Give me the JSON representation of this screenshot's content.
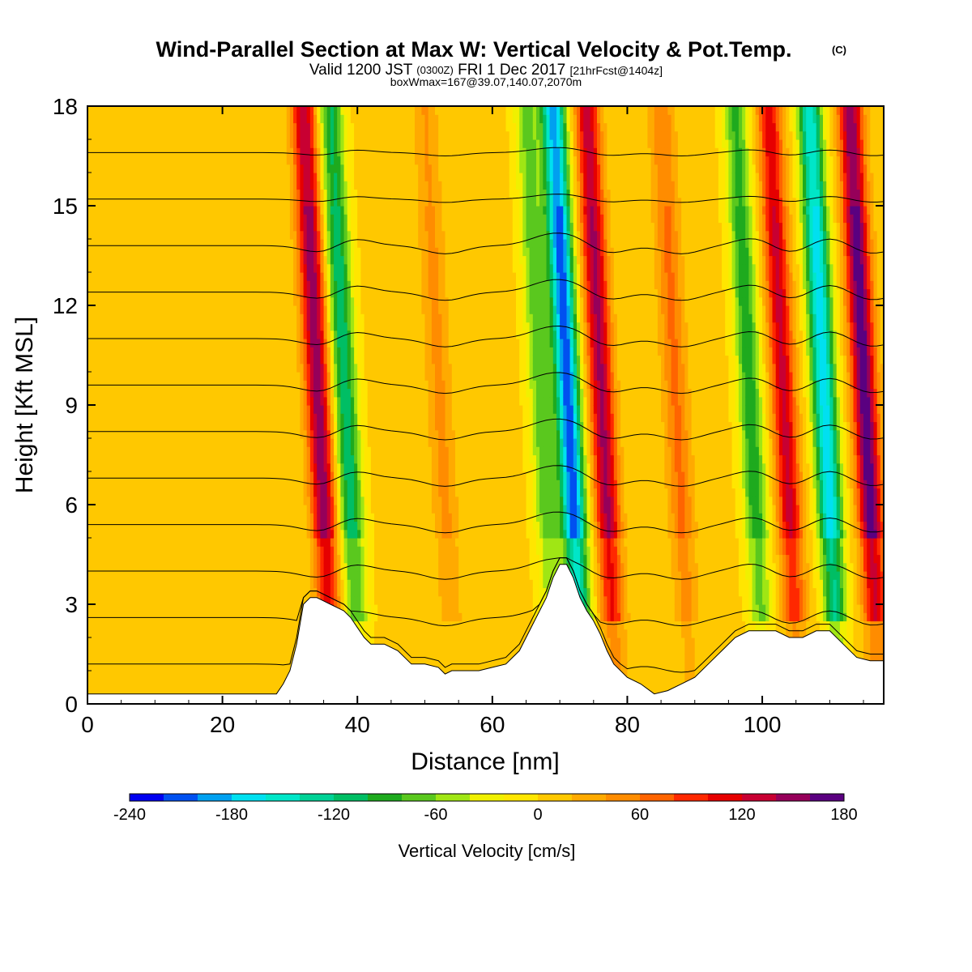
{
  "header": {
    "title_main": "Wind-Parallel Section at Max W: Vertical Velocity & Pot.Temp.",
    "title_mark": "(C)",
    "valid_a": "Valid 1200 JST",
    "valid_b": "(0300Z)",
    "valid_c": "FRI 1 Dec 2017",
    "valid_d": "[21hrFcst@1404z]",
    "boxw": "boxWmax=167@39.07,140.07,2070m"
  },
  "chart_data": {
    "type": "heatmap",
    "title": "Wind-Parallel Section at Max W: Vertical Velocity & Pot.Temp.",
    "xlabel": "Distance [nm]",
    "ylabel": "Height [Kft MSL]",
    "xlim": [
      0,
      118
    ],
    "ylim": [
      0,
      18
    ],
    "x_ticks": [
      "0",
      "20",
      "40",
      "60",
      "80",
      "100"
    ],
    "y_ticks": [
      "0",
      "3",
      "6",
      "9",
      "12",
      "15",
      "18"
    ],
    "colorbar": {
      "label": "Vertical Velocity [cm/s]",
      "tick_labels": [
        "-240",
        "-180",
        "-120",
        "-60",
        "0",
        "60",
        "120",
        "180"
      ],
      "boundaries": [
        -240,
        -220,
        -200,
        -180,
        -160,
        -140,
        -120,
        -100,
        -80,
        -60,
        -40,
        -20,
        0,
        20,
        40,
        60,
        80,
        100,
        120,
        140,
        160,
        180
      ],
      "colors": [
        "#0000f0",
        "#0050f0",
        "#00a0f0",
        "#00e0f0",
        "#00e6c8",
        "#00d296",
        "#00be64",
        "#1eaa1e",
        "#5ac81e",
        "#a0e614",
        "#f0f000",
        "#ffe600",
        "#ffc800",
        "#ffaa00",
        "#ff8c00",
        "#ff6400",
        "#ff2800",
        "#e60000",
        "#c80032",
        "#96005a",
        "#5a0080"
      ]
    },
    "features": [
      {
        "kind": "updraft",
        "x": 35,
        "peak_cms": 150
      },
      {
        "kind": "downdraft",
        "x": 39,
        "peak_cms": -120
      },
      {
        "kind": "updraft",
        "x": 53,
        "peak_cms": 40
      },
      {
        "kind": "downdraft",
        "x": 68,
        "peak_cms": -80
      },
      {
        "kind": "downdraft",
        "x": 72,
        "peak_cms": -220
      },
      {
        "kind": "updraft",
        "x": 77,
        "peak_cms": 140
      },
      {
        "kind": "updraft",
        "x": 88,
        "peak_cms": 60
      },
      {
        "kind": "downdraft",
        "x": 99,
        "peak_cms": -100
      },
      {
        "kind": "updraft",
        "x": 104,
        "peak_cms": 120
      },
      {
        "kind": "downdraft",
        "x": 110,
        "peak_cms": -180
      },
      {
        "kind": "updraft",
        "x": 116,
        "peak_cms": 170
      }
    ],
    "terrain_kft": [
      [
        0,
        0.3
      ],
      [
        5,
        0.3
      ],
      [
        10,
        0.3
      ],
      [
        15,
        0.3
      ],
      [
        20,
        0.3
      ],
      [
        25,
        0.3
      ],
      [
        28,
        0.3
      ],
      [
        29,
        0.6
      ],
      [
        30,
        1.0
      ],
      [
        31,
        1.8
      ],
      [
        32,
        3.0
      ],
      [
        33,
        3.2
      ],
      [
        34,
        3.2
      ],
      [
        35,
        3.1
      ],
      [
        36,
        3.0
      ],
      [
        37,
        2.9
      ],
      [
        38,
        2.8
      ],
      [
        39,
        2.6
      ],
      [
        40,
        2.3
      ],
      [
        41,
        2.0
      ],
      [
        42,
        1.8
      ],
      [
        44,
        1.8
      ],
      [
        46,
        1.6
      ],
      [
        48,
        1.2
      ],
      [
        50,
        1.2
      ],
      [
        52,
        1.1
      ],
      [
        53,
        0.9
      ],
      [
        54,
        1.0
      ],
      [
        56,
        1.0
      ],
      [
        58,
        1.0
      ],
      [
        60,
        1.1
      ],
      [
        62,
        1.2
      ],
      [
        64,
        1.6
      ],
      [
        66,
        2.4
      ],
      [
        68,
        3.2
      ],
      [
        69,
        3.8
      ],
      [
        70,
        4.2
      ],
      [
        71,
        4.2
      ],
      [
        72,
        3.8
      ],
      [
        73,
        3.2
      ],
      [
        74,
        2.8
      ],
      [
        75,
        2.5
      ],
      [
        76,
        2.1
      ],
      [
        77,
        1.6
      ],
      [
        78,
        1.2
      ],
      [
        80,
        0.8
      ],
      [
        82,
        0.6
      ],
      [
        84,
        0.3
      ],
      [
        86,
        0.4
      ],
      [
        88,
        0.6
      ],
      [
        90,
        0.8
      ],
      [
        92,
        1.2
      ],
      [
        94,
        1.6
      ],
      [
        96,
        2.0
      ],
      [
        98,
        2.2
      ],
      [
        100,
        2.2
      ],
      [
        102,
        2.2
      ],
      [
        104,
        2.0
      ],
      [
        106,
        2.0
      ],
      [
        108,
        2.2
      ],
      [
        110,
        2.2
      ],
      [
        112,
        1.8
      ],
      [
        114,
        1.4
      ],
      [
        116,
        1.3
      ],
      [
        118,
        1.3
      ]
    ],
    "theta_contour_levels": [
      2,
      4,
      6,
      8,
      10,
      12,
      14,
      16,
      18,
      20,
      22,
      24
    ]
  }
}
